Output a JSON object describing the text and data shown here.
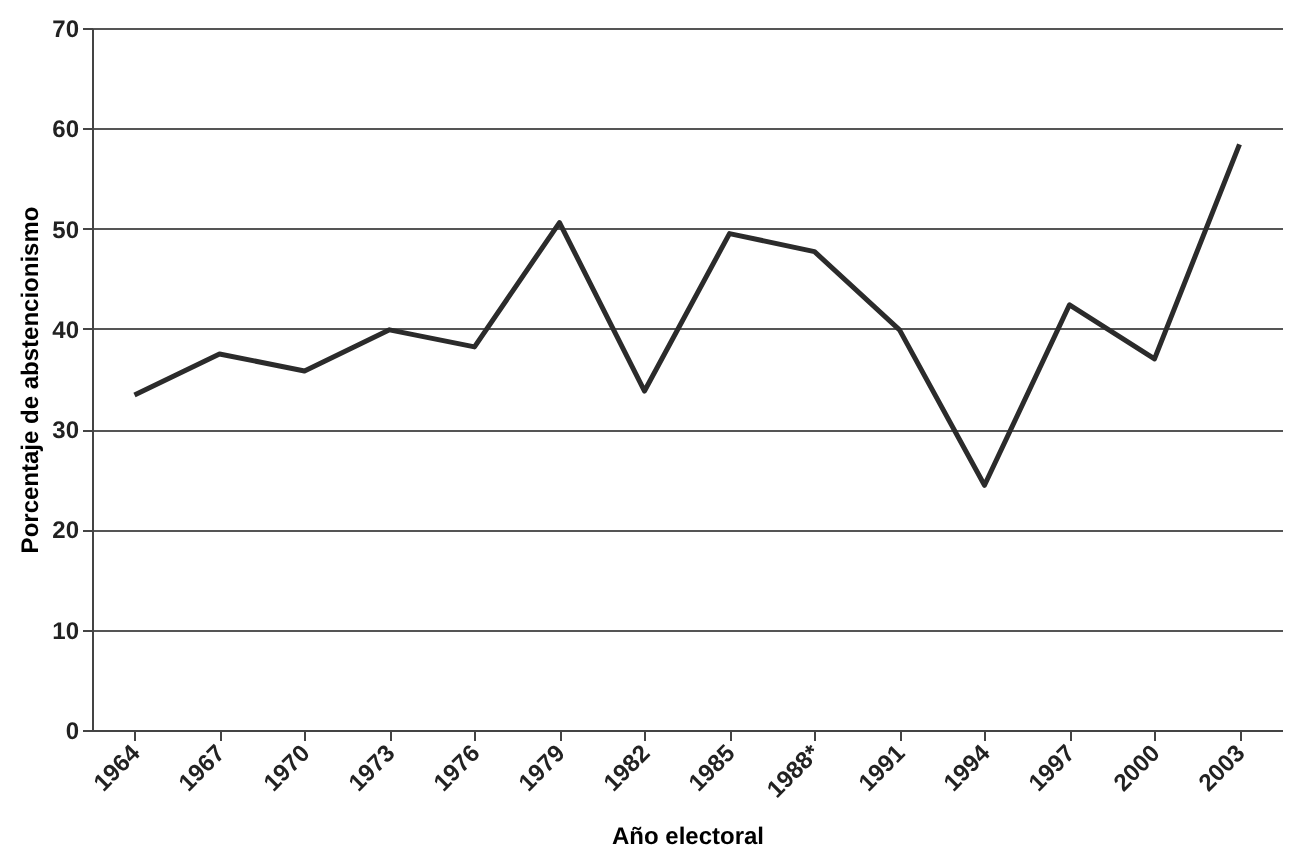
{
  "chart_data": {
    "type": "line",
    "xlabel": "Año electoral",
    "ylabel": "Porcentaje de abstencionismo",
    "categories": [
      "1964",
      "1967",
      "1970",
      "1973",
      "1976",
      "1979",
      "1982",
      "1985",
      "1988*",
      "1991",
      "1994",
      "1997",
      "2000",
      "2003"
    ],
    "series": [
      {
        "color": "#2b2b2b",
        "values": [
          33.4,
          37.5,
          35.8,
          39.9,
          38.2,
          50.6,
          33.8,
          49.5,
          47.7,
          39.9,
          24.4,
          42.4,
          37.0,
          58.4
        ]
      }
    ],
    "ylim": [
      0,
      70
    ],
    "yticks": [
      0,
      10,
      20,
      30,
      40,
      50,
      60,
      70
    ],
    "grid": "y",
    "marker": "none",
    "line_style": "solid"
  }
}
